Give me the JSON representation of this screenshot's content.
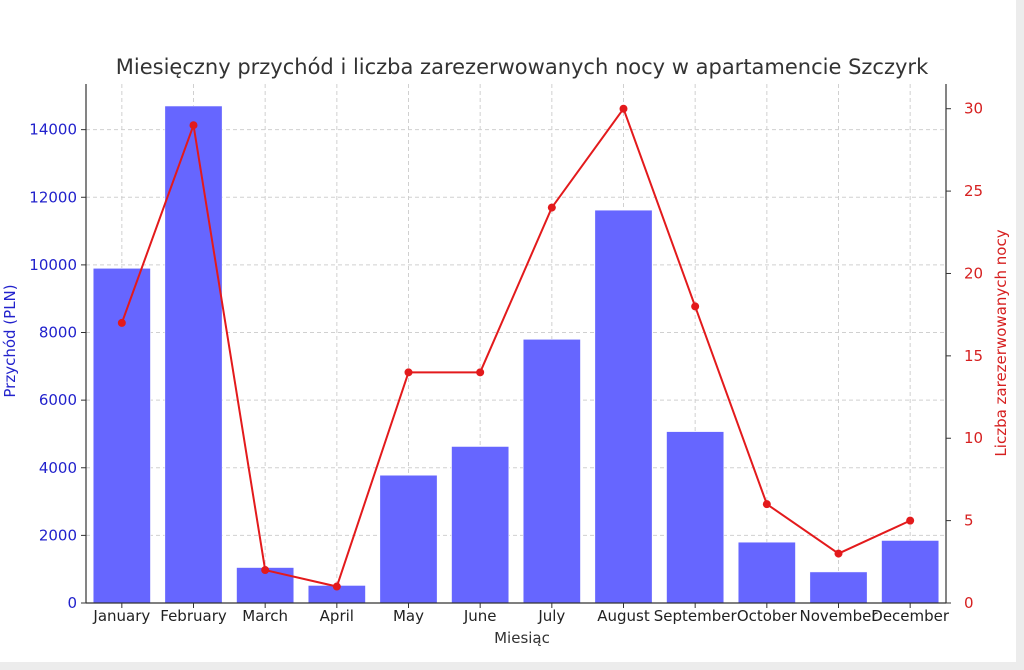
{
  "chart_data": {
    "type": "bar",
    "title": "Miesięczny przychód i liczba zarezerwowanych nocy w apartamencie Szczyrk",
    "xlabel": "Miesiąc",
    "ylabel": "Przychód (PLN)",
    "y2label": "Liczba zarezerwowanych nocy",
    "categories": [
      "January",
      "February",
      "March",
      "April",
      "May",
      "June",
      "July",
      "August",
      "September",
      "October",
      "November",
      "December"
    ],
    "series": [
      {
        "type": "bar",
        "axis": "left",
        "color": "#6666ff",
        "values": [
          9900,
          14700,
          1050,
          520,
          3780,
          4630,
          7800,
          11620,
          5070,
          1800,
          920,
          1850
        ]
      },
      {
        "type": "line",
        "axis": "right",
        "color": "#e31a1c",
        "values": [
          17,
          29,
          2,
          1,
          14,
          14,
          24,
          30,
          18,
          6,
          3,
          5
        ]
      }
    ],
    "ylim": [
      0,
      15350
    ],
    "y2lim": [
      0,
      31.5
    ],
    "yticks": [
      0,
      2000,
      4000,
      6000,
      8000,
      10000,
      12000,
      14000
    ],
    "y2ticks": [
      0,
      5,
      10,
      15,
      20,
      25,
      30
    ],
    "grid": true,
    "colors": {
      "left_axis": "#2222cc",
      "right_axis": "#d62020"
    }
  }
}
